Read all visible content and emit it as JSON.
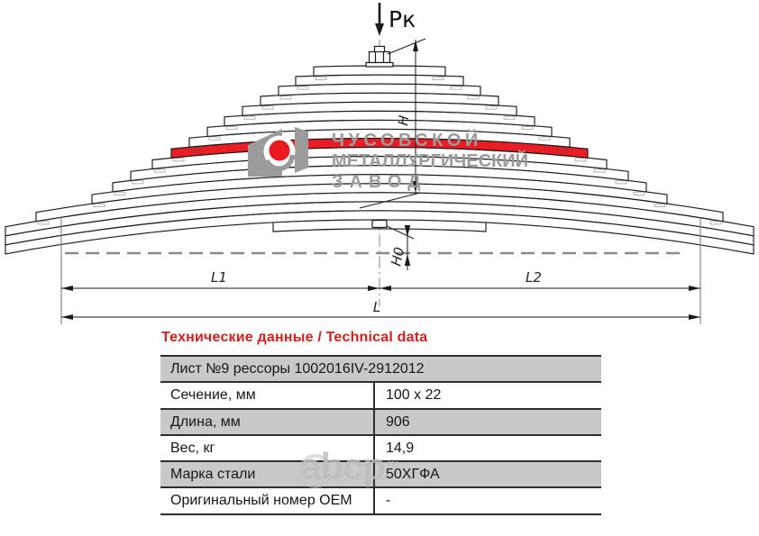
{
  "drawing": {
    "labels": {
      "load": "Рк",
      "height": "H",
      "arc_height": "H0",
      "l1": "L1",
      "l2": "L2",
      "l": "L"
    },
    "leaf_count": 18,
    "highlighted_leaf": 9,
    "leaf_half_lengths": [
      73,
      93,
      112,
      132,
      152,
      172,
      191,
      211,
      231,
      252,
      276,
      296,
      319,
      381,
      415,
      415,
      415,
      118
    ],
    "highlight_color": "#ec1c24",
    "line_color": "#1a1a1a",
    "construction_color": "#8a8a8a",
    "logo": {
      "line1": "ЧУСОВСКОЙ",
      "line2": "МЕТАЛЛУРГИЧЕСКИЙ",
      "line3": "ЗАВОД",
      "color": "#9b9b9b",
      "accent": "#e8191f"
    }
  },
  "watermark": {
    "text": "abcp",
    "suffix": "ru"
  },
  "table": {
    "heading": "Технические данные / Technical data",
    "heading_color": "#d2201f",
    "title_row": "Лист №9 рессоры 1002016IV-2912012",
    "rows": [
      {
        "label": "Сечение, мм",
        "value": "100 x 22"
      },
      {
        "label": "Длина, мм",
        "value": "906"
      },
      {
        "label": "Вес, кг",
        "value": "14,9"
      },
      {
        "label": "Марка стали",
        "value": "50ХГФА"
      },
      {
        "label": "Оригинальный номер OEM",
        "value": "-"
      }
    ],
    "row_gray": "#c9c9c9"
  }
}
